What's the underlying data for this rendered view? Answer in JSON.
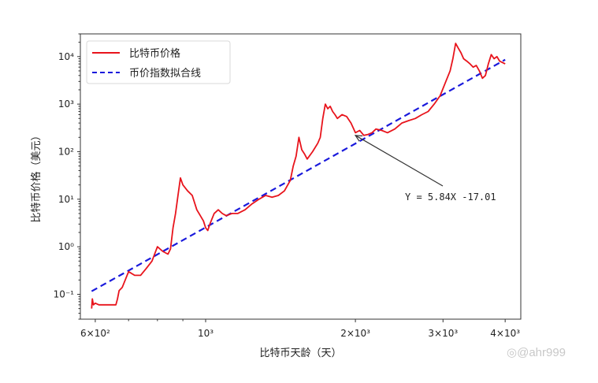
{
  "chart_data": {
    "type": "line",
    "title": "",
    "xlabel": "比特币天龄（天）",
    "ylabel": "比特币价格（美元）",
    "xscale": "log",
    "yscale": "log",
    "xlim": [
      560,
      4300
    ],
    "ylim": [
      0.03,
      30000
    ],
    "x_ticks": [
      {
        "value": 600,
        "label": "6×10²"
      },
      {
        "value": 1000,
        "label": "10³"
      },
      {
        "value": 2000,
        "label": "2×10³"
      },
      {
        "value": 3000,
        "label": "3×10³"
      },
      {
        "value": 4000,
        "label": "4×10³"
      }
    ],
    "y_ticks": [
      {
        "value": 0.1,
        "label": "10⁻¹"
      },
      {
        "value": 1,
        "label": "10⁰"
      },
      {
        "value": 10,
        "label": "10¹"
      },
      {
        "value": 100,
        "label": "10²"
      },
      {
        "value": 1000,
        "label": "10³"
      },
      {
        "value": 10000,
        "label": "10⁴"
      }
    ],
    "grid": false,
    "legend_position": "upper left",
    "series": [
      {
        "name": "比特币价格",
        "color": "#e8141c",
        "style": "solid",
        "x": [
          590,
          592,
          595,
          600,
          610,
          640,
          660,
          665,
          670,
          680,
          700,
          720,
          740,
          760,
          780,
          800,
          820,
          840,
          850,
          860,
          870,
          880,
          890,
          900,
          920,
          940,
          960,
          990,
          1000,
          1010,
          1020,
          1040,
          1060,
          1080,
          1100,
          1130,
          1160,
          1200,
          1240,
          1280,
          1320,
          1360,
          1400,
          1440,
          1480,
          1500,
          1520,
          1540,
          1560,
          1580,
          1600,
          1640,
          1680,
          1700,
          1720,
          1740,
          1760,
          1780,
          1800,
          1820,
          1840,
          1880,
          1920,
          1960,
          2000,
          2040,
          2080,
          2120,
          2160,
          2200,
          2260,
          2320,
          2400,
          2480,
          2560,
          2640,
          2720,
          2800,
          2880,
          2960,
          3040,
          3100,
          3140,
          3180,
          3220,
          3260,
          3300,
          3350,
          3400,
          3450,
          3500,
          3550,
          3600,
          3650,
          3700,
          3750,
          3800,
          3850,
          3900,
          3950,
          4000
        ],
        "y": [
          0.05,
          0.08,
          0.06,
          0.065,
          0.06,
          0.06,
          0.06,
          0.08,
          0.12,
          0.14,
          0.3,
          0.25,
          0.25,
          0.35,
          0.5,
          1.0,
          0.8,
          0.7,
          0.9,
          2.5,
          5,
          12,
          28,
          20,
          15,
          12,
          6,
          3.5,
          2.5,
          2.2,
          3,
          5,
          6,
          5,
          4.5,
          5,
          5,
          6,
          8,
          10,
          12,
          11,
          12,
          15,
          25,
          50,
          80,
          200,
          110,
          90,
          70,
          100,
          150,
          200,
          500,
          1000,
          800,
          900,
          700,
          600,
          500,
          600,
          550,
          400,
          250,
          280,
          220,
          230,
          250,
          300,
          280,
          250,
          300,
          400,
          450,
          500,
          600,
          700,
          1000,
          1500,
          3000,
          5000,
          9000,
          19000,
          15000,
          12000,
          9000,
          8000,
          7000,
          6000,
          6500,
          5000,
          3500,
          4000,
          7000,
          11000,
          9000,
          10000,
          8000,
          7500,
          7000
        ]
      },
      {
        "name": "币价指数拟合线",
        "color": "#1a1adc",
        "style": "dashed",
        "x": [
          590,
          4000
        ],
        "y": [
          0.116,
          8600
        ]
      }
    ],
    "annotations": [
      {
        "text": "Y = 5.84X -17.01",
        "arrow_to": {
          "x": 2000,
          "y": 220
        },
        "text_at": {
          "x": 2900,
          "y": 10
        }
      }
    ]
  },
  "legend": {
    "items": [
      {
        "label": "比特币价格",
        "color": "#e8141c",
        "style": "solid"
      },
      {
        "label": "币价指数拟合线",
        "color": "#1a1adc",
        "style": "dashed"
      }
    ]
  },
  "annotation_text": "Y = 5.84X -17.01",
  "watermark": "@ahr999"
}
